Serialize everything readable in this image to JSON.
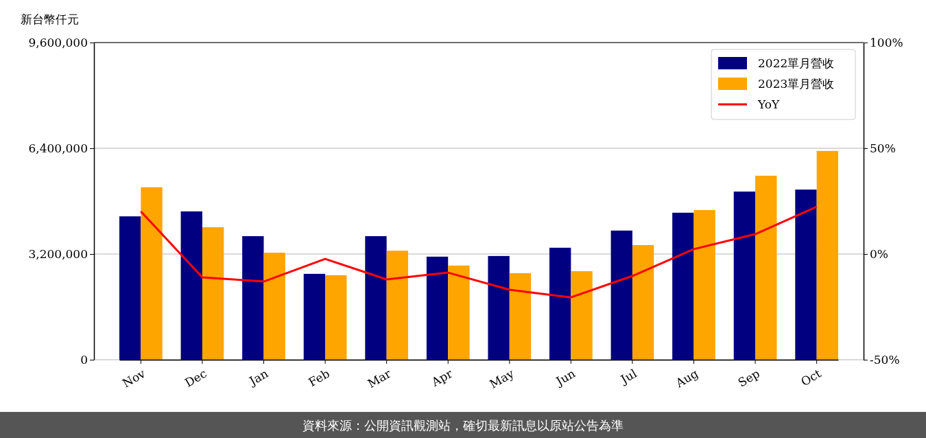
{
  "chart_data": {
    "type": "bar",
    "ylabel": "新台幣仟元",
    "categories": [
      "Nov",
      "Dec",
      "Jan",
      "Feb",
      "Mar",
      "Apr",
      "May",
      "Jun",
      "Jul",
      "Aug",
      "Sep",
      "Oct"
    ],
    "series": [
      {
        "name": "2022單月營收",
        "color": "#000080",
        "values": [
          4340000,
          4490000,
          3740000,
          2600000,
          3740000,
          3120000,
          3140000,
          3390000,
          3910000,
          4450000,
          5090000,
          5150000
        ]
      },
      {
        "name": "2023單月營收",
        "color": "#ffa500",
        "values": [
          5220000,
          4010000,
          3240000,
          2560000,
          3300000,
          2850000,
          2620000,
          2680000,
          3470000,
          4530000,
          5570000,
          6320000
        ]
      },
      {
        "name": "YoY",
        "type": "line",
        "axis": "y2",
        "color": "#ff0000",
        "values": [
          20.1,
          -11.0,
          -13.0,
          -2.3,
          -12.0,
          -8.8,
          -16.9,
          -20.5,
          -10.4,
          2.3,
          9.4,
          22.4
        ]
      }
    ],
    "ylim": [
      0,
      9600000
    ],
    "yticks": [
      {
        "value": 0,
        "label": "0"
      },
      {
        "value": 3200000,
        "label": "3,200,000"
      },
      {
        "value": 6400000,
        "label": "6,400,000"
      },
      {
        "value": 9600000,
        "label": "9,600,000"
      }
    ],
    "y2lim": [
      -50,
      100
    ],
    "y2ticks": [
      {
        "value": -50,
        "label": "-50%"
      },
      {
        "value": 0,
        "label": "0%"
      },
      {
        "value": 50,
        "label": "50%"
      },
      {
        "value": 100,
        "label": "100%"
      }
    ],
    "grid": "y",
    "legend": "top right",
    "line_style": "solid",
    "annotations": [
      "資料來源：公開資訊觀測站，確切最新訊息以原站公告為準"
    ]
  }
}
